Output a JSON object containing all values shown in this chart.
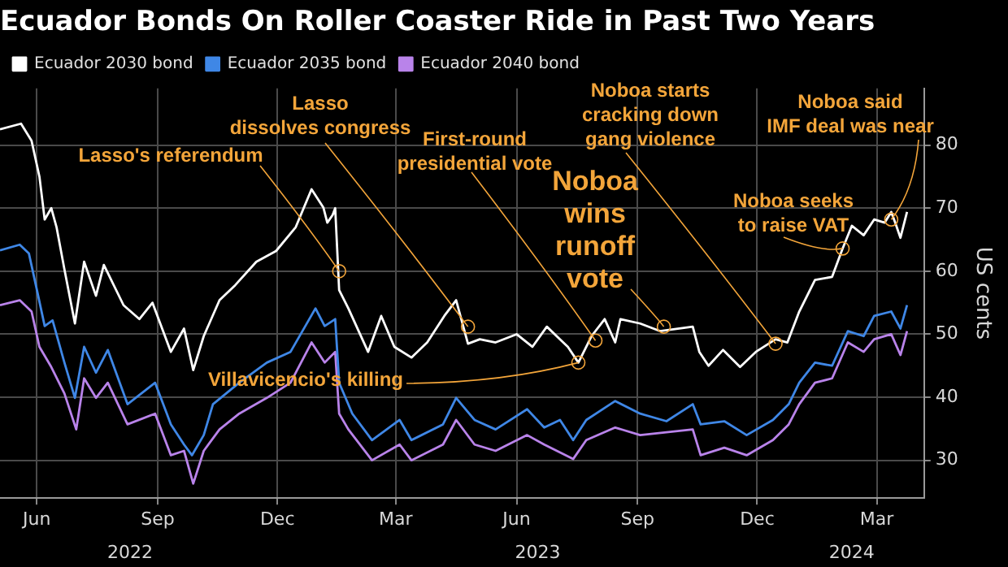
{
  "chart_data": {
    "type": "line",
    "title": "Ecuador Bonds On Roller Coaster Ride in Past Two Years",
    "ylabel": "US cents",
    "legend": "top left",
    "grid": true,
    "marker": "none",
    "line_style": "solid",
    "xlim": [
      "2022-05-18",
      "2024-04-20"
    ],
    "xticks": [
      {
        "value": "2022-06-15",
        "label": "Jun"
      },
      {
        "value": "2022-09-15",
        "label": "Sep"
      },
      {
        "value": "2022-12-15",
        "label": "Dec"
      },
      {
        "value": "2023-03-15",
        "label": "Mar"
      },
      {
        "value": "2023-06-15",
        "label": "Jun"
      },
      {
        "value": "2023-09-15",
        "label": "Sep"
      },
      {
        "value": "2023-12-15",
        "label": "Dec"
      },
      {
        "value": "2024-03-15",
        "label": "Mar"
      }
    ],
    "x2lim": [
      "2022-05-18",
      "2024-04-20"
    ],
    "x2ticks": [
      {
        "value": "2022-08-25",
        "label": "2022"
      },
      {
        "value": "2023-07-01",
        "label": "2023"
      },
      {
        "value": "2024-02-25",
        "label": "2024"
      }
    ],
    "ylim": [
      24,
      89
    ],
    "yticks": [
      30,
      40,
      50,
      60,
      70,
      80
    ],
    "series": [
      {
        "name": "Ecuador 2030 bond",
        "color": "#ffffff",
        "x": [
          "2022-05-18",
          "2022-06-03",
          "2022-06-11",
          "2022-06-17",
          "2022-06-21",
          "2022-06-26",
          "2022-06-30",
          "2022-07-06",
          "2022-07-14",
          "2022-07-21",
          "2022-07-30",
          "2022-08-05",
          "2022-08-20",
          "2022-09-01",
          "2022-09-11",
          "2022-09-25",
          "2022-10-05",
          "2022-10-12",
          "2022-10-20",
          "2022-11-01",
          "2022-11-13",
          "2022-11-29",
          "2022-12-14",
          "2022-12-29",
          "2023-01-10",
          "2023-01-19",
          "2023-01-22",
          "2023-01-26",
          "2023-01-28",
          "2023-01-31",
          "2023-02-07",
          "2023-02-22",
          "2023-03-04",
          "2023-03-14",
          "2023-03-27",
          "2023-04-08",
          "2023-04-21",
          "2023-04-30",
          "2023-05-09",
          "2023-05-18",
          "2023-05-30",
          "2023-06-15",
          "2023-06-27",
          "2023-07-08",
          "2023-07-18",
          "2023-07-24",
          "2023-08-01",
          "2023-08-11",
          "2023-08-21",
          "2023-08-29",
          "2023-09-02",
          "2023-09-17",
          "2023-10-02",
          "2023-10-27",
          "2023-11-01",
          "2023-11-08",
          "2023-11-19",
          "2023-12-02",
          "2023-12-14",
          "2023-12-29",
          "2024-01-07",
          "2024-01-16",
          "2024-01-28",
          "2024-02-10",
          "2024-02-18",
          "2024-02-25",
          "2024-03-05",
          "2024-03-13",
          "2024-03-21",
          "2024-03-26",
          "2024-03-29",
          "2024-04-02",
          "2024-04-07"
        ],
        "values": [
          82.5,
          83.4,
          80.7,
          75,
          68.2,
          70,
          67,
          60.3,
          51.7,
          61.5,
          56.1,
          61,
          54.6,
          52.4,
          55,
          47.2,
          50.9,
          44.3,
          49.7,
          55.4,
          57.8,
          61.5,
          63.2,
          67,
          73,
          70.1,
          67.7,
          68.9,
          70,
          57,
          54.1,
          47.2,
          52.9,
          48,
          46.3,
          48.7,
          52.9,
          55.4,
          48.5,
          49.2,
          48.7,
          50,
          48,
          51.2,
          49.2,
          48,
          45.5,
          49.7,
          52.4,
          48.7,
          52.4,
          51.7,
          50.5,
          51.2,
          47.2,
          45,
          47.5,
          44.8,
          47.2,
          49.2,
          48.7,
          53.6,
          58.6,
          59.1,
          63.6,
          67.2,
          65.7,
          68.2,
          67.7,
          69.4,
          67.7,
          65.3,
          69.4
        ]
      },
      {
        "name": "Ecuador 2035 bond",
        "color": "#3f87e6",
        "x": [
          "2022-05-18",
          "2022-06-02",
          "2022-06-09",
          "2022-06-15",
          "2022-06-21",
          "2022-06-27",
          "2022-07-06",
          "2022-07-14",
          "2022-07-21",
          "2022-07-30",
          "2022-08-08",
          "2022-08-23",
          "2022-09-13",
          "2022-09-25",
          "2022-10-05",
          "2022-10-11",
          "2022-10-20",
          "2022-10-27",
          "2022-11-16",
          "2022-12-07",
          "2022-12-25",
          "2023-01-13",
          "2023-01-20",
          "2023-01-28",
          "2023-01-31",
          "2023-02-10",
          "2023-02-25",
          "2023-03-18",
          "2023-03-27",
          "2023-04-20",
          "2023-04-30",
          "2023-05-14",
          "2023-05-30",
          "2023-06-23",
          "2023-07-06",
          "2023-07-18",
          "2023-07-28",
          "2023-08-07",
          "2023-08-29",
          "2023-09-17",
          "2023-10-07",
          "2023-10-27",
          "2023-11-02",
          "2023-11-20",
          "2023-12-07",
          "2023-12-27",
          "2024-01-08",
          "2024-01-16",
          "2024-01-28",
          "2024-02-10",
          "2024-02-22",
          "2024-03-05",
          "2024-03-13",
          "2024-03-26",
          "2024-04-02",
          "2024-04-07"
        ],
        "values": [
          63.3,
          64.2,
          62.8,
          57.1,
          51.3,
          52.2,
          45.5,
          39.9,
          48,
          43.9,
          47.5,
          38.9,
          42.3,
          35.7,
          32.5,
          30.8,
          34,
          38.9,
          42.3,
          45.5,
          47.2,
          54.1,
          51.3,
          52.4,
          42.3,
          37.4,
          33.2,
          36.4,
          33.2,
          35.7,
          39.9,
          36.4,
          34.9,
          38.1,
          35.2,
          36.4,
          33.2,
          36.4,
          39.4,
          37.4,
          36.2,
          38.9,
          35.7,
          36.2,
          34,
          36.4,
          38.9,
          42.3,
          45.5,
          45,
          50.5,
          49.7,
          52.9,
          53.6,
          50.9,
          54.6
        ]
      },
      {
        "name": "Ecuador 2040 bond",
        "color": "#b983ea",
        "x": [
          "2022-05-18",
          "2022-06-02",
          "2022-06-11",
          "2022-06-17",
          "2022-06-26",
          "2022-07-06",
          "2022-07-15",
          "2022-07-21",
          "2022-07-30",
          "2022-08-08",
          "2022-08-23",
          "2022-09-13",
          "2022-09-25",
          "2022-10-05",
          "2022-10-12",
          "2022-10-20",
          "2022-11-01",
          "2022-11-16",
          "2022-12-07",
          "2022-12-25",
          "2023-01-10",
          "2023-01-20",
          "2023-01-28",
          "2023-01-31",
          "2023-02-07",
          "2023-02-25",
          "2023-03-18",
          "2023-03-27",
          "2023-04-20",
          "2023-04-30",
          "2023-05-14",
          "2023-05-30",
          "2023-06-23",
          "2023-07-06",
          "2023-07-28",
          "2023-08-07",
          "2023-08-29",
          "2023-09-17",
          "2023-10-27",
          "2023-11-02",
          "2023-11-20",
          "2023-12-07",
          "2023-12-27",
          "2024-01-08",
          "2024-01-16",
          "2024-01-28",
          "2024-02-10",
          "2024-02-22",
          "2024-03-05",
          "2024-03-13",
          "2024-03-26",
          "2024-04-02",
          "2024-04-07"
        ],
        "values": [
          54.6,
          55.4,
          53.6,
          48,
          44.8,
          40.6,
          34.9,
          43,
          39.9,
          42.3,
          35.7,
          37.4,
          30.8,
          31.5,
          26.3,
          31.5,
          34.9,
          37.4,
          39.9,
          42.3,
          48.7,
          45.5,
          47.2,
          37.4,
          34.9,
          30,
          32.5,
          30,
          32.5,
          36.4,
          32.5,
          31.5,
          34,
          32.5,
          30.2,
          33.2,
          35.2,
          34,
          34.9,
          30.8,
          32,
          30.8,
          33.2,
          35.7,
          38.9,
          42.3,
          43,
          48.7,
          47.2,
          49.2,
          50,
          46.7,
          50.5
        ]
      }
    ],
    "annotations": [
      {
        "text": "Lasso's referendum",
        "x": "2023-01-31",
        "y": 60
      },
      {
        "text": "Lasso\ndissolves congress",
        "x": "2023-05-09",
        "y": 51.2
      },
      {
        "text": "First-round\npresidential vote",
        "x": "2023-08-14",
        "y": 49
      },
      {
        "text": "Villavicencio's killing",
        "x": "2023-08-01",
        "y": 45.5
      },
      {
        "text": "Noboa\nwins\nrunoff\nvote",
        "x": "2023-10-05",
        "y": 51.2
      },
      {
        "text": "Noboa starts\ncracking down\ngang violence",
        "x": "2023-12-29",
        "y": 48.5
      },
      {
        "text": "Noboa seeks\nto raise VAT",
        "x": "2024-02-18",
        "y": 63.6
      },
      {
        "text": "Noboa said\nIMF deal was near",
        "x": "2024-03-26",
        "y": 68.2
      }
    ]
  }
}
